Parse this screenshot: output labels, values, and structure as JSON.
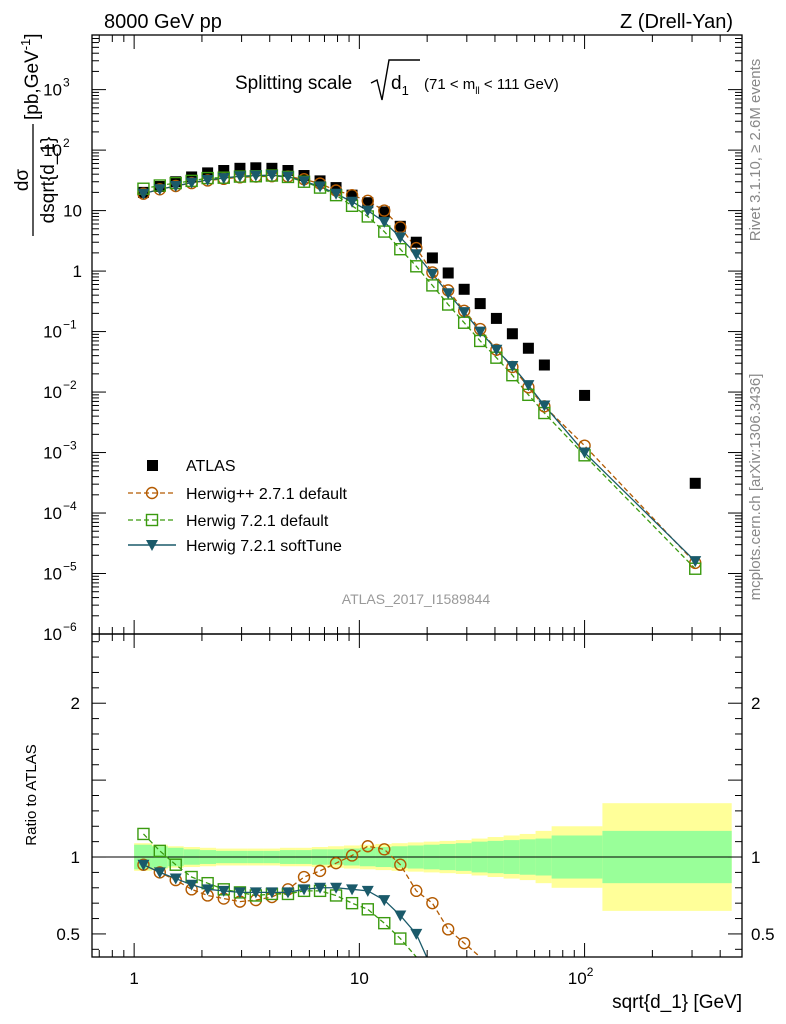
{
  "header": {
    "left": "8000 GeV pp",
    "right": "Z (Drell-Yan)"
  },
  "side": {
    "rivet": "Rivet 3.1.10, ≥ 2.6M events",
    "mcplots": "mcplots.cern.ch [arXiv:1306.3436]"
  },
  "plot_title": {
    "main": "Splitting scale",
    "var": "d",
    "var_sub": "1",
    "range": "(71 < m",
    "range_sub": "ll",
    "range_end": " < 111 GeV)"
  },
  "watermark": "ATLAS_2017_I1589844",
  "ylabel": {
    "frac_top": "dσ",
    "frac_bottom": "dsqrt{d_1}",
    "units": " [pb,GeV",
    "units_sup": "-1",
    "units_end": "]"
  },
  "ratio_label": "Ratio to ATLAS",
  "xlabel": "sqrt{d_1} [GeV]",
  "colors": {
    "atlas": "#000000",
    "herwigpp": "#b35a00",
    "herwig72": "#3a9a0f",
    "softtune": "#1a5a6a",
    "band_inner": "#99ff99",
    "band_outer": "#ffff99"
  },
  "chart_data": [
    {
      "type": "scatter",
      "xscale": "log",
      "yscale": "log",
      "xlim": [
        0.65,
        500
      ],
      "ylim": [
        1e-06,
        8000
      ],
      "xlabel": "sqrt{d_1} [GeV]",
      "ylabel": "dσ/dsqrt{d_1} [pb,GeV⁻¹]",
      "x_ticks": [
        {
          "value": 1,
          "label": "1"
        },
        {
          "value": 10,
          "label": "10"
        },
        {
          "value": 100,
          "label": "10",
          "sup": "2"
        }
      ],
      "y_ticks": [
        {
          "value": 1e-06,
          "label": "10",
          "sup": "−6"
        },
        {
          "value": 1e-05,
          "label": "10",
          "sup": "−5"
        },
        {
          "value": 0.0001,
          "label": "10",
          "sup": "−4"
        },
        {
          "value": 0.001,
          "label": "10",
          "sup": "−3"
        },
        {
          "value": 0.01,
          "label": "10",
          "sup": "−2"
        },
        {
          "value": 0.1,
          "label": "10",
          "sup": "−1"
        },
        {
          "value": 1,
          "label": "1"
        },
        {
          "value": 10,
          "label": "10"
        },
        {
          "value": 100,
          "label": "10",
          "sup": "2"
        },
        {
          "value": 1000,
          "label": "10",
          "sup": "3"
        }
      ],
      "legend_position": "left-center",
      "series": [
        {
          "name": "ATLAS",
          "marker": "square",
          "x": [
            1.1,
            1.3,
            1.53,
            1.8,
            2.12,
            2.5,
            2.95,
            3.47,
            4.09,
            4.82,
            5.68,
            6.69,
            7.88,
            9.28,
            10.9,
            12.9,
            15.2,
            17.9,
            21.1,
            24.8,
            29.2,
            34.4,
            40.6,
            47.8,
            56.3,
            66.3,
            100,
            310
          ],
          "values": [
            20.0,
            25.0,
            30.0,
            36.0,
            42.0,
            46.0,
            50.0,
            51.0,
            50.0,
            46.0,
            38.0,
            31.0,
            24.0,
            18.0,
            13.5,
            9.5,
            5.5,
            3.0,
            1.65,
            0.93,
            0.5,
            0.29,
            0.165,
            0.092,
            0.053,
            0.028,
            0.0088,
            0.00031
          ]
        },
        {
          "name": "Herwig++ 2.7.1 default",
          "marker": "open-circle",
          "dashed": true,
          "x": [
            1.1,
            1.3,
            1.53,
            1.8,
            2.12,
            2.5,
            2.95,
            3.47,
            4.09,
            4.82,
            5.68,
            6.69,
            7.88,
            9.28,
            10.9,
            12.9,
            15.2,
            17.9,
            21.1,
            24.8,
            29.2,
            34.4,
            40.6,
            47.8,
            56.3,
            66.3,
            100,
            310
          ],
          "values": [
            19.0,
            22.5,
            25.5,
            28.5,
            31.5,
            33.5,
            35.5,
            36.5,
            37.0,
            36.5,
            33.0,
            28.0,
            21.5,
            18.0,
            14.5,
            10.0,
            5.3,
            2.4,
            0.95,
            0.48,
            0.22,
            0.11,
            0.05,
            0.026,
            0.012,
            0.0058,
            0.0013,
            1.5e-05
          ]
        },
        {
          "name": "Herwig 7.2.1 default",
          "marker": "open-square",
          "dashed": true,
          "x": [
            1.1,
            1.3,
            1.53,
            1.8,
            2.12,
            2.5,
            2.95,
            3.47,
            4.09,
            4.82,
            5.68,
            6.69,
            7.88,
            9.28,
            10.9,
            12.9,
            15.2,
            17.9,
            21.1,
            24.8,
            29.2,
            34.4,
            40.6,
            47.8,
            56.3,
            66.3,
            100,
            310
          ],
          "values": [
            23.0,
            26.0,
            28.5,
            31.0,
            34.5,
            35.0,
            36.5,
            37.0,
            38.0,
            36.0,
            30.0,
            24.0,
            18.0,
            12.0,
            8.0,
            4.5,
            2.3,
            1.2,
            0.58,
            0.28,
            0.14,
            0.07,
            0.037,
            0.019,
            0.009,
            0.0045,
            0.0009,
            1.2e-05
          ]
        },
        {
          "name": "Herwig 7.2.1 softTune",
          "marker": "filled-triangle-down",
          "dashed": false,
          "x": [
            1.1,
            1.3,
            1.53,
            1.8,
            2.12,
            2.5,
            2.95,
            3.47,
            4.09,
            4.82,
            5.68,
            6.69,
            7.88,
            9.28,
            10.9,
            12.9,
            15.2,
            17.9,
            21.1,
            24.8,
            29.2,
            34.4,
            40.6,
            47.8,
            56.3,
            66.3,
            100,
            310
          ],
          "values": [
            19.0,
            22.5,
            25.5,
            29.0,
            32.0,
            34.5,
            37.0,
            38.0,
            38.5,
            36.5,
            30.5,
            25.0,
            19.0,
            14.0,
            10.0,
            6.5,
            3.6,
            1.9,
            0.9,
            0.43,
            0.21,
            0.1,
            0.05,
            0.027,
            0.013,
            0.006,
            0.001,
            1.6e-05
          ]
        }
      ]
    },
    {
      "type": "line",
      "xscale": "log",
      "xlim": [
        0.65,
        500
      ],
      "ylim": [
        0.35,
        2.45
      ],
      "ylabel": "Ratio to ATLAS",
      "y_ticks": [
        {
          "value": 0.5,
          "label": "0.5"
        },
        {
          "value": 1,
          "label": "1"
        },
        {
          "value": 2,
          "label": "2"
        }
      ],
      "bands": {
        "edges": [
          1.0,
          1.2,
          1.41,
          1.66,
          1.96,
          2.31,
          2.72,
          3.2,
          3.77,
          4.44,
          5.23,
          6.15,
          7.25,
          8.54,
          10.05,
          11.8,
          13.9,
          16.4,
          19.3,
          22.7,
          26.8,
          31.5,
          37.1,
          43.7,
          51.5,
          60.6,
          71.4,
          120,
          450
        ],
        "inner": [
          0.08,
          0.07,
          0.06,
          0.05,
          0.045,
          0.04,
          0.04,
          0.04,
          0.04,
          0.045,
          0.045,
          0.05,
          0.05,
          0.055,
          0.06,
          0.065,
          0.07,
          0.075,
          0.08,
          0.085,
          0.09,
          0.1,
          0.105,
          0.11,
          0.115,
          0.12,
          0.14,
          0.17
        ],
        "outer": [
          0.09,
          0.08,
          0.07,
          0.065,
          0.06,
          0.055,
          0.055,
          0.055,
          0.055,
          0.06,
          0.06,
          0.065,
          0.07,
          0.075,
          0.08,
          0.085,
          0.09,
          0.095,
          0.1,
          0.105,
          0.11,
          0.12,
          0.13,
          0.14,
          0.15,
          0.17,
          0.2,
          0.35
        ]
      },
      "ratio_series": [
        {
          "name": "Herwig++ 2.7.1 default",
          "x": [
            1.1,
            1.3,
            1.53,
            1.8,
            2.12,
            2.5,
            2.95,
            3.47,
            4.09,
            4.82,
            5.68,
            6.69,
            7.88,
            9.28,
            10.9,
            12.9,
            15.2,
            17.9,
            21.1,
            24.8,
            29.2,
            34.4
          ],
          "values": [
            0.95,
            0.9,
            0.85,
            0.79,
            0.75,
            0.73,
            0.71,
            0.72,
            0.74,
            0.79,
            0.87,
            0.91,
            0.96,
            1.01,
            1.07,
            1.05,
            0.95,
            0.78,
            0.7,
            0.53,
            0.44,
            0.35
          ]
        },
        {
          "name": "Herwig 7.2.1 default",
          "x": [
            1.1,
            1.3,
            1.53,
            1.8,
            2.12,
            2.5,
            2.95,
            3.47,
            4.09,
            4.82,
            5.68,
            6.69,
            7.88,
            9.28,
            10.9,
            12.9,
            15.2,
            17.9
          ],
          "values": [
            1.15,
            1.04,
            0.95,
            0.87,
            0.83,
            0.79,
            0.77,
            0.75,
            0.76,
            0.76,
            0.78,
            0.78,
            0.75,
            0.7,
            0.66,
            0.57,
            0.47,
            0.35
          ]
        },
        {
          "name": "Herwig 7.2.1 softTune",
          "x": [
            1.1,
            1.3,
            1.53,
            1.8,
            2.12,
            2.5,
            2.95,
            3.47,
            4.09,
            4.82,
            5.68,
            6.69,
            7.88,
            9.28,
            10.9,
            12.9,
            15.2,
            17.9,
            19.9
          ],
          "values": [
            0.95,
            0.9,
            0.86,
            0.82,
            0.79,
            0.78,
            0.77,
            0.77,
            0.77,
            0.77,
            0.79,
            0.8,
            0.8,
            0.79,
            0.78,
            0.72,
            0.62,
            0.5,
            0.35
          ]
        }
      ]
    }
  ]
}
